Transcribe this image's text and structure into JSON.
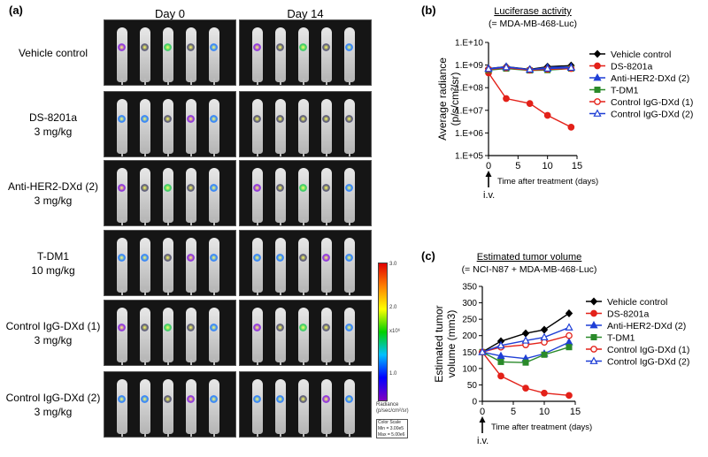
{
  "panel_a": {
    "label": "(a)",
    "day_headers": [
      "Day 0",
      "Day 14"
    ],
    "groups": [
      {
        "name": "Vehicle control",
        "dose": ""
      },
      {
        "name": "DS-8201a",
        "dose": "3 mg/kg"
      },
      {
        "name": "Anti-HER2-DXd (2)",
        "dose": "3 mg/kg"
      },
      {
        "name": "T-DM1",
        "dose": "10 mg/kg"
      },
      {
        "name": "Control IgG-DXd (1)",
        "dose": "3 mg/kg"
      },
      {
        "name": "Control IgG-DXd (2)",
        "dose": "3 mg/kg"
      }
    ],
    "colorbar": {
      "ticks": [
        "3.0",
        "2.0",
        "1.0"
      ],
      "unit": "x10⁶",
      "label": "Radiance",
      "sublabel": "(p/sec/cm²/sr)",
      "scale_lines": [
        "Color Scale",
        "Min = 3.00e5",
        "Max = 5.00e6"
      ]
    }
  },
  "chart_data": [
    {
      "panel": "(b)",
      "type": "line",
      "title": "Luciferase activity",
      "subtitle": "(= MDA-MB-468-Luc)",
      "xlabel": "Time after treatment (days)",
      "ylabel": "Average radiance (p/s/cm²/sr)",
      "xlim": [
        0,
        15
      ],
      "xticks": [
        0,
        5,
        10,
        15
      ],
      "ylim": [
        100000,
        10000000000
      ],
      "yscale": "log",
      "yticks": [
        "1.E+05",
        "1.E+06",
        "1.E+07",
        "1.E+08",
        "1.E+09",
        "1.E+10"
      ],
      "annotation": "i.v.",
      "legend_position": "right",
      "x": [
        0,
        3,
        7,
        10,
        14
      ],
      "series": [
        {
          "name": "Vehicle control",
          "color": "#000000",
          "marker": "diamond",
          "values": [
            700000000,
            850000000,
            650000000,
            850000000,
            950000000
          ]
        },
        {
          "name": "DS-8201a",
          "color": "#e32119",
          "marker": "circle",
          "values": [
            450000000,
            33000000,
            20000000,
            6000000,
            1800000
          ]
        },
        {
          "name": "Anti-HER2-DXd (2)",
          "color": "#1f3fd6",
          "marker": "triangle",
          "values": [
            700000000,
            850000000,
            620000000,
            780000000,
            820000000
          ]
        },
        {
          "name": "T-DM1",
          "color": "#2a8a2a",
          "marker": "square",
          "values": [
            600000000,
            700000000,
            580000000,
            600000000,
            700000000
          ]
        },
        {
          "name": "Control IgG-DXd (1)",
          "color": "#e32119",
          "marker": "circle-open",
          "values": [
            650000000,
            750000000,
            600000000,
            650000000,
            700000000
          ]
        },
        {
          "name": "Control IgG-DXd (2)",
          "color": "#1f3fd6",
          "marker": "triangle-open",
          "values": [
            680000000,
            800000000,
            640000000,
            700000000,
            760000000
          ]
        }
      ]
    },
    {
      "panel": "(c)",
      "type": "line",
      "title": "Estimated tumor volume",
      "subtitle": "(= NCI-N87 + MDA-MB-468-Luc)",
      "xlabel": "Time after treatment (days)",
      "ylabel": "Estimated tumor volume (mm3)",
      "xlim": [
        0,
        15
      ],
      "xticks": [
        0,
        5,
        10,
        15
      ],
      "ylim": [
        0,
        350
      ],
      "yticks": [
        0,
        50,
        100,
        150,
        200,
        250,
        300,
        350
      ],
      "annotation": "i.v.",
      "legend_position": "right",
      "x": [
        0,
        3,
        7,
        10,
        14
      ],
      "series": [
        {
          "name": "Vehicle control",
          "color": "#000000",
          "marker": "diamond",
          "values": [
            150,
            183,
            207,
            218,
            268
          ]
        },
        {
          "name": "DS-8201a",
          "color": "#e32119",
          "marker": "circle",
          "values": [
            150,
            77,
            40,
            25,
            18
          ]
        },
        {
          "name": "Anti-HER2-DXd (2)",
          "color": "#1f3fd6",
          "marker": "triangle",
          "values": [
            150,
            138,
            130,
            145,
            180
          ]
        },
        {
          "name": "T-DM1",
          "color": "#2a8a2a",
          "marker": "square",
          "values": [
            150,
            120,
            118,
            142,
            165
          ]
        },
        {
          "name": "Control IgG-DXd (1)",
          "color": "#e32119",
          "marker": "circle-open",
          "values": [
            150,
            165,
            172,
            180,
            200
          ]
        },
        {
          "name": "Control IgG-DXd (2)",
          "color": "#1f3fd6",
          "marker": "triangle-open",
          "values": [
            150,
            170,
            185,
            195,
            225
          ]
        }
      ]
    }
  ]
}
